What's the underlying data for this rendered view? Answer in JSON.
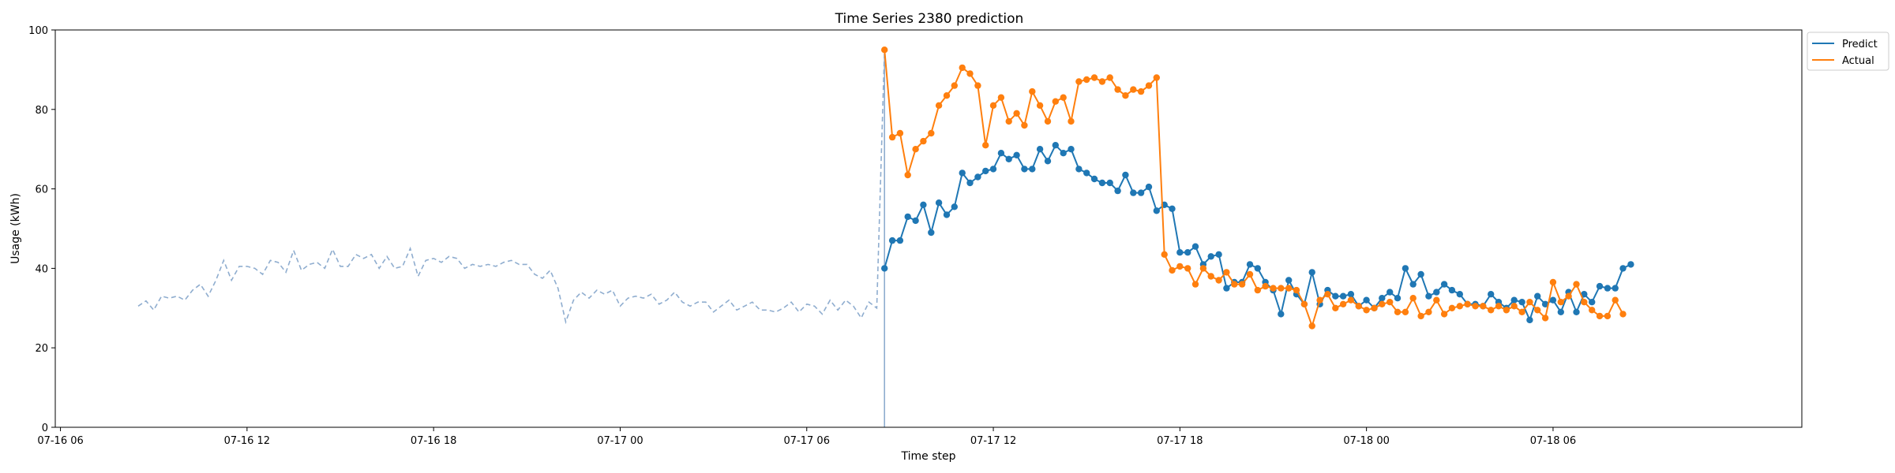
{
  "chart_data": {
    "type": "line",
    "title": "Time Series 2380 prediction",
    "xlabel": "Time step",
    "ylabel": "Usage (kWh)",
    "ylim": [
      0,
      100
    ],
    "xlim": [
      "07-16 05:50",
      "07-18 14:00"
    ],
    "xticks": [
      {
        "t": "07-16 06:00",
        "label": "07-16 06"
      },
      {
        "t": "07-16 12:00",
        "label": "07-16 12"
      },
      {
        "t": "07-16 18:00",
        "label": "07-16 18"
      },
      {
        "t": "07-17 00:00",
        "label": "07-17 00"
      },
      {
        "t": "07-17 06:00",
        "label": "07-17 06"
      },
      {
        "t": "07-17 12:00",
        "label": "07-17 12"
      },
      {
        "t": "07-17 18:00",
        "label": "07-17 18"
      },
      {
        "t": "07-18 00:00",
        "label": "07-18 00"
      },
      {
        "t": "07-18 06:00",
        "label": "07-18 06"
      }
    ],
    "yticks": [
      0,
      20,
      40,
      60,
      80,
      100
    ],
    "legend": {
      "placement": "top-right (outside plot)",
      "entries": [
        "Predict",
        "Actual"
      ]
    },
    "colors": {
      "predict": "#1f77b4",
      "actual": "#ff7f0e",
      "history": "#8fadcf"
    },
    "history": {
      "start": "07-16 08:30",
      "step_minutes": 15,
      "values": [
        30.5,
        31.8,
        29.5,
        33.0,
        32.5,
        33.0,
        32.0,
        34.5,
        36.0,
        33.0,
        37.0,
        42.0,
        37.0,
        40.5,
        40.5,
        40.0,
        38.5,
        42.0,
        41.5,
        39.0,
        44.5,
        39.5,
        41.0,
        41.5,
        40.0,
        44.8,
        40.5,
        40.5,
        43.5,
        42.5,
        43.5,
        40.0,
        43.0,
        40.0,
        40.5,
        45.0,
        38.0,
        42.0,
        42.5,
        41.5,
        43.0,
        42.5,
        40.0,
        41.0,
        40.5,
        41.0,
        40.5,
        41.5,
        42.0,
        41.0,
        41.0,
        38.5,
        37.5,
        39.5,
        35.0,
        26.5,
        32.0,
        34.0,
        32.5,
        34.5,
        33.5,
        34.5,
        30.5,
        32.5,
        33.0,
        32.5,
        33.5,
        31.0,
        32.0,
        34.0,
        31.5,
        30.5,
        31.5,
        31.5,
        29.0,
        30.5,
        32.0,
        29.5,
        30.5,
        31.5,
        29.5,
        29.5,
        29.0,
        30.0,
        31.5,
        29.0,
        31.0,
        30.5,
        28.5,
        32.0,
        29.5,
        32.0,
        30.5,
        27.5,
        31.5,
        30.0,
        95.0
      ]
    },
    "forecast_start": "07-17 08:30",
    "forecast_step_minutes": 15,
    "series": [
      {
        "name": "Predict",
        "values": [
          40.0,
          47.0,
          47.0,
          53.0,
          52.0,
          56.0,
          49.0,
          56.5,
          53.5,
          55.5,
          64.0,
          61.5,
          63.0,
          64.5,
          65.0,
          69.0,
          67.5,
          68.5,
          65.0,
          65.0,
          70.0,
          67.0,
          71.0,
          69.0,
          70.0,
          65.0,
          64.0,
          62.5,
          61.5,
          61.5,
          59.5,
          63.5,
          59.0,
          59.0,
          60.5,
          54.5,
          56.0,
          55.0,
          44.0,
          44.0,
          45.5,
          41.0,
          43.0,
          43.5,
          35.0,
          36.5,
          36.5,
          41.0,
          40.0,
          36.5,
          34.5,
          28.5,
          37.0,
          33.5,
          31.0,
          39.0,
          31.0,
          34.5,
          33.0,
          33.0,
          33.5,
          30.5,
          32.0,
          30.0,
          32.5,
          34.0,
          32.5,
          40.0,
          36.0,
          38.5,
          33.0,
          34.0,
          36.0,
          34.5,
          33.5,
          31.0,
          31.0,
          30.5,
          33.5,
          31.5,
          30.0,
          32.0,
          31.5,
          27.0,
          33.0,
          31.0,
          32.0,
          29.0,
          34.0,
          29.0,
          33.5,
          31.5,
          35.5,
          35.0,
          35.0,
          40.0,
          41.0
        ]
      },
      {
        "name": "Actual",
        "values": [
          95.0,
          73.0,
          74.0,
          63.5,
          70.0,
          72.0,
          74.0,
          81.0,
          83.5,
          86.0,
          90.5,
          89.0,
          86.0,
          71.0,
          81.0,
          83.0,
          77.0,
          79.0,
          76.0,
          84.5,
          81.0,
          77.0,
          82.0,
          83.0,
          77.0,
          87.0,
          87.5,
          88.0,
          87.0,
          88.0,
          85.0,
          83.5,
          85.0,
          84.5,
          86.0,
          88.0,
          43.5,
          39.5,
          40.5,
          40.0,
          36.0,
          40.0,
          38.0,
          37.0,
          39.0,
          36.0,
          36.0,
          38.5,
          34.5,
          35.5,
          35.0,
          35.0,
          35.0,
          34.5,
          31.0,
          25.5,
          32.0,
          33.5,
          30.0,
          31.0,
          32.0,
          30.5,
          29.5,
          30.0,
          31.0,
          31.5,
          29.0,
          29.0,
          32.5,
          28.0,
          29.0,
          32.0,
          28.5,
          30.0,
          30.5,
          31.0,
          30.5,
          30.5,
          29.5,
          30.5,
          29.5,
          30.5,
          29.0,
          31.5,
          29.5,
          27.5,
          36.5,
          31.5,
          33.0,
          36.0,
          31.5,
          29.5,
          28.0,
          28.0,
          32.0,
          28.5
        ]
      }
    ]
  }
}
